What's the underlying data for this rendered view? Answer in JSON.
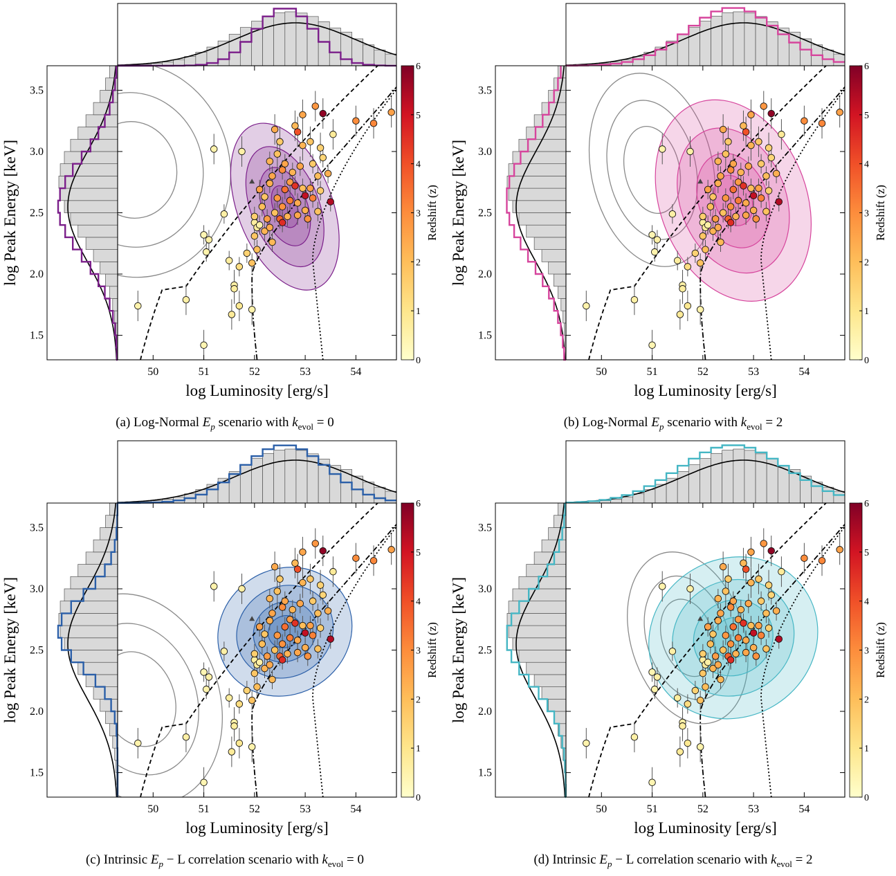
{
  "figure": {
    "captions": [
      {
        "prefix": "(a) Log-Normal ",
        "var": "E",
        "var_sub": "p",
        "mid": " scenario with ",
        "k": "k",
        "k_sub": "evol",
        "tail": " = 0"
      },
      {
        "prefix": "(b) Log-Normal ",
        "var": "E",
        "var_sub": "p",
        "mid": " scenario with ",
        "k": "k",
        "k_sub": "evol",
        "tail": " = 2"
      },
      {
        "prefix": "(c) Intrinsic ",
        "var": "E",
        "var_sub": "p",
        "mid": " − L correlation scenario with ",
        "k": "k",
        "k_sub": "evol",
        "tail": " = 0"
      },
      {
        "prefix": "(d) Intrinsic ",
        "var": "E",
        "var_sub": "p",
        "mid": " − L correlation scenario with ",
        "k": "k",
        "k_sub": "evol",
        "tail": " = 2"
      }
    ]
  },
  "chart_data": [
    {
      "type": "scatter",
      "panel": "a",
      "xlabel": "log Luminosity [erg/s]",
      "ylabel": "log Peak Energy [keV]",
      "colorbar_label": "Redshift (z)",
      "xlim": [
        49.3,
        54.8
      ],
      "ylim": [
        1.3,
        3.7
      ],
      "xticks": [
        "50",
        "51",
        "52",
        "53",
        "54"
      ],
      "yticks": [
        "1.5",
        "2.0",
        "2.5",
        "3.0",
        "3.5"
      ],
      "colorbar_ticks": [
        "0",
        "1",
        "2",
        "3",
        "4",
        "5",
        "6"
      ],
      "colorbar_range": [
        0,
        6
      ],
      "model_color": "#7b1f8a",
      "model_center": [
        52.6,
        2.55
      ],
      "model_spread": [
        0.55,
        0.42
      ],
      "model_tilt": 0.35,
      "grey_center": [
        49.6,
        2.85
      ],
      "grey_spread": [
        1.2,
        0.55
      ]
    },
    {
      "type": "scatter",
      "panel": "b",
      "xlabel": "log Luminosity [erg/s]",
      "ylabel": "log Peak Energy [keV]",
      "colorbar_label": "Redshift (z)",
      "xlim": [
        49.3,
        54.8
      ],
      "ylim": [
        1.3,
        3.7
      ],
      "xticks": [
        "50",
        "51",
        "52",
        "53",
        "54"
      ],
      "yticks": [
        "1.5",
        "2.0",
        "2.5",
        "3.0",
        "3.5"
      ],
      "colorbar_ticks": [
        "0",
        "1",
        "2",
        "3",
        "4",
        "5",
        "6"
      ],
      "colorbar_range": [
        0,
        6
      ],
      "model_color": "#d6449c",
      "model_center": [
        52.6,
        2.6
      ],
      "model_spread": [
        0.85,
        0.5
      ],
      "model_tilt": 0.35,
      "grey_center": [
        51.0,
        2.85
      ],
      "grey_spread": [
        0.75,
        0.5
      ]
    },
    {
      "type": "scatter",
      "panel": "c",
      "xlabel": "log Luminosity [erg/s]",
      "ylabel": "log Peak Energy [keV]",
      "colorbar_label": "Redshift (z)",
      "xlim": [
        49.3,
        54.8
      ],
      "ylim": [
        1.3,
        3.7
      ],
      "xticks": [
        "50",
        "51",
        "52",
        "53",
        "54"
      ],
      "yticks": [
        "1.5",
        "2.0",
        "2.5",
        "3.0",
        "3.5"
      ],
      "colorbar_ticks": [
        "0",
        "1",
        "2",
        "3",
        "4",
        "5",
        "6"
      ],
      "colorbar_range": [
        0,
        6
      ],
      "model_color": "#2b5fa8",
      "model_center": [
        52.6,
        2.65
      ],
      "model_spread": [
        0.8,
        0.3
      ],
      "model_tilt": 0.55,
      "grey_center": [
        49.7,
        2.1
      ],
      "grey_spread": [
        1.0,
        0.55
      ]
    },
    {
      "type": "scatter",
      "panel": "d",
      "xlabel": "log Luminosity [erg/s]",
      "ylabel": "log Peak Energy [keV]",
      "colorbar_label": "Redshift (z)",
      "xlim": [
        49.3,
        54.8
      ],
      "ylim": [
        1.3,
        3.7
      ],
      "xticks": [
        "50",
        "51",
        "52",
        "53",
        "54"
      ],
      "yticks": [
        "1.5",
        "2.0",
        "2.5",
        "3.0",
        "3.5"
      ],
      "colorbar_ticks": [
        "0",
        "1",
        "2",
        "3",
        "4",
        "5",
        "6"
      ],
      "colorbar_range": [
        0,
        6
      ],
      "model_color": "#45b6c4",
      "model_center": [
        52.6,
        2.6
      ],
      "model_spread": [
        1.0,
        0.38
      ],
      "model_tilt": 0.5,
      "grey_center": [
        51.7,
        2.6
      ],
      "grey_spread": [
        0.7,
        0.45
      ]
    }
  ],
  "observed_points": [
    {
      "x": 49.7,
      "y": 1.74,
      "z": 0.5
    },
    {
      "x": 50.65,
      "y": 1.79,
      "z": 0.6
    },
    {
      "x": 51.0,
      "y": 1.42,
      "z": 0.4
    },
    {
      "x": 51.2,
      "y": 3.02,
      "z": 0.5
    },
    {
      "x": 51.4,
      "y": 2.49,
      "z": 0.6
    },
    {
      "x": 51.0,
      "y": 2.32,
      "z": 0.4
    },
    {
      "x": 51.1,
      "y": 2.28,
      "z": 0.6
    },
    {
      "x": 51.05,
      "y": 2.18,
      "z": 0.5
    },
    {
      "x": 51.5,
      "y": 2.11,
      "z": 0.7
    },
    {
      "x": 51.6,
      "y": 1.91,
      "z": 0.6
    },
    {
      "x": 51.6,
      "y": 1.88,
      "z": 0.7
    },
    {
      "x": 51.55,
      "y": 1.67,
      "z": 0.8
    },
    {
      "x": 51.7,
      "y": 1.74,
      "z": 0.9
    },
    {
      "x": 51.95,
      "y": 1.71,
      "z": 0.5
    },
    {
      "x": 51.75,
      "y": 3.0,
      "z": 0.6
    },
    {
      "x": 51.7,
      "y": 2.06,
      "z": 1.2
    },
    {
      "x": 51.85,
      "y": 2.17,
      "z": 1.5
    },
    {
      "x": 52.0,
      "y": 2.42,
      "z": 0.7
    },
    {
      "x": 52.05,
      "y": 2.38,
      "z": 0.8
    },
    {
      "x": 52.0,
      "y": 2.31,
      "z": 1.8
    },
    {
      "x": 52.1,
      "y": 2.4,
      "z": 0.6
    },
    {
      "x": 52.0,
      "y": 2.47,
      "z": 1.6
    },
    {
      "x": 52.05,
      "y": 2.2,
      "z": 2.0
    },
    {
      "x": 51.95,
      "y": 2.09,
      "z": 1.9
    },
    {
      "x": 52.2,
      "y": 2.35,
      "z": 2.2
    },
    {
      "x": 52.3,
      "y": 2.38,
      "z": 2.4
    },
    {
      "x": 52.15,
      "y": 2.55,
      "z": 2.0
    },
    {
      "x": 52.2,
      "y": 2.63,
      "z": 1.8
    },
    {
      "x": 52.1,
      "y": 2.69,
      "z": 2.6
    },
    {
      "x": 52.3,
      "y": 2.74,
      "z": 2.3
    },
    {
      "x": 52.35,
      "y": 2.8,
      "z": 2.5
    },
    {
      "x": 52.3,
      "y": 2.92,
      "z": 2.2
    },
    {
      "x": 52.45,
      "y": 2.98,
      "z": 1.9
    },
    {
      "x": 52.5,
      "y": 3.08,
      "z": 1.7
    },
    {
      "x": 52.4,
      "y": 3.18,
      "z": 2.4
    },
    {
      "x": 52.8,
      "y": 3.21,
      "z": 2.1
    },
    {
      "x": 52.85,
      "y": 3.16,
      "z": 4.0
    },
    {
      "x": 52.95,
      "y": 3.3,
      "z": 2.5
    },
    {
      "x": 52.95,
      "y": 3.05,
      "z": 2.2
    },
    {
      "x": 53.2,
      "y": 3.37,
      "z": 2.8
    },
    {
      "x": 53.35,
      "y": 3.31,
      "z": 5.8
    },
    {
      "x": 53.1,
      "y": 3.08,
      "z": 1.8
    },
    {
      "x": 53.3,
      "y": 3.03,
      "z": 1.5
    },
    {
      "x": 53.55,
      "y": 3.14,
      "z": 0.8
    },
    {
      "x": 53.35,
      "y": 2.95,
      "z": 1.4
    },
    {
      "x": 53.15,
      "y": 2.9,
      "z": 1.7
    },
    {
      "x": 53.25,
      "y": 2.8,
      "z": 2.0
    },
    {
      "x": 53.45,
      "y": 2.82,
      "z": 2.3
    },
    {
      "x": 52.6,
      "y": 2.9,
      "z": 2.5
    },
    {
      "x": 52.55,
      "y": 2.85,
      "z": 3.0
    },
    {
      "x": 52.75,
      "y": 2.83,
      "z": 2.2
    },
    {
      "x": 52.9,
      "y": 2.88,
      "z": 2.5
    },
    {
      "x": 52.7,
      "y": 2.75,
      "z": 2.7
    },
    {
      "x": 52.8,
      "y": 2.72,
      "z": 4.5
    },
    {
      "x": 52.6,
      "y": 2.69,
      "z": 3.5
    },
    {
      "x": 52.95,
      "y": 2.7,
      "z": 2.0
    },
    {
      "x": 53.1,
      "y": 2.7,
      "z": 2.6
    },
    {
      "x": 53.0,
      "y": 2.64,
      "z": 5.2
    },
    {
      "x": 53.15,
      "y": 2.62,
      "z": 3.2
    },
    {
      "x": 53.3,
      "y": 2.68,
      "z": 1.6
    },
    {
      "x": 52.45,
      "y": 2.62,
      "z": 2.8
    },
    {
      "x": 52.55,
      "y": 2.55,
      "z": 2.9
    },
    {
      "x": 52.7,
      "y": 2.6,
      "z": 3.3
    },
    {
      "x": 52.85,
      "y": 2.58,
      "z": 2.4
    },
    {
      "x": 52.4,
      "y": 2.5,
      "z": 1.9
    },
    {
      "x": 52.5,
      "y": 2.45,
      "z": 3.7
    },
    {
      "x": 52.65,
      "y": 2.47,
      "z": 2.2
    },
    {
      "x": 52.85,
      "y": 2.48,
      "z": 2.5
    },
    {
      "x": 52.25,
      "y": 2.45,
      "z": 2.7
    },
    {
      "x": 52.35,
      "y": 2.26,
      "z": 2.1
    },
    {
      "x": 52.55,
      "y": 2.42,
      "z": 4.6
    },
    {
      "x": 53.0,
      "y": 2.52,
      "z": 2.3
    },
    {
      "x": 53.05,
      "y": 2.45,
      "z": 2.9
    },
    {
      "x": 53.5,
      "y": 2.59,
      "z": 5.4
    },
    {
      "x": 53.25,
      "y": 2.51,
      "z": 1.9
    },
    {
      "x": 54.0,
      "y": 3.25,
      "z": 3.0
    },
    {
      "x": 54.35,
      "y": 3.23,
      "z": 3.1
    },
    {
      "x": 54.7,
      "y": 3.32,
      "z": 2.6
    }
  ]
}
